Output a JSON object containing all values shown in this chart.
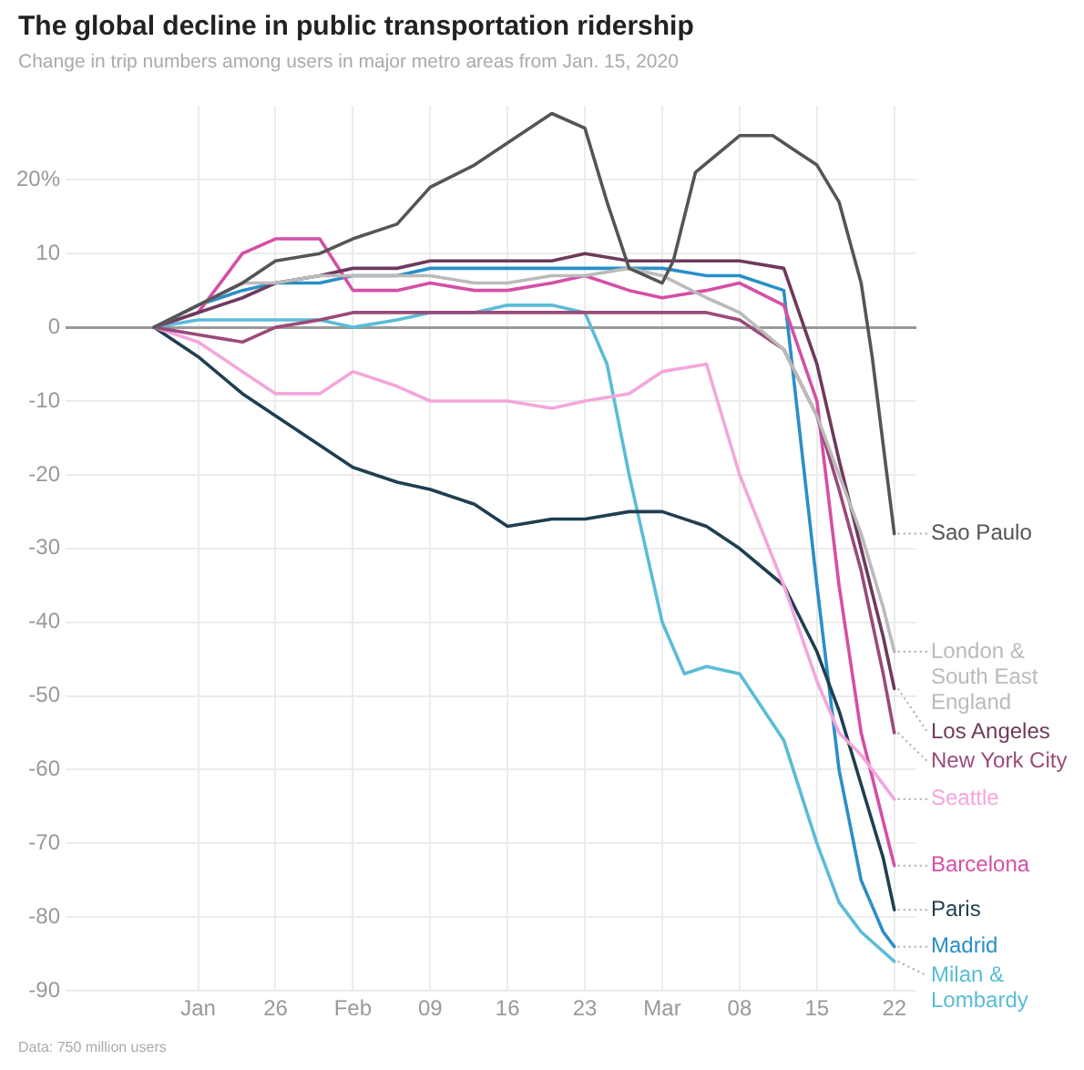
{
  "chart_data": {
    "type": "line",
    "title": "The global decline in public transportation ridership",
    "subtitle": "Change in trip numbers among users in major metro areas from Jan. 15, 2020",
    "annotations": [
      "Data: 750 million users"
    ],
    "x": [
      "2020-01-15",
      "2020-01-19",
      "2020-01-23",
      "2020-01-26",
      "2020-01-30",
      "2020-02-02",
      "2020-02-06",
      "2020-02-09",
      "2020-02-13",
      "2020-02-16",
      "2020-02-20",
      "2020-02-23",
      "2020-02-27",
      "2020-03-01",
      "2020-03-05",
      "2020-03-08",
      "2020-03-12",
      "2020-03-15",
      "2020-03-17",
      "2020-03-19",
      "2020-03-21",
      "2020-03-22"
    ],
    "series": [
      {
        "name": "Sao Paulo",
        "color": "#555555",
        "x": [
          "2020-01-15",
          "2020-01-19",
          "2020-01-23",
          "2020-01-26",
          "2020-01-30",
          "2020-02-02",
          "2020-02-06",
          "2020-02-09",
          "2020-02-13",
          "2020-02-16",
          "2020-02-20",
          "2020-02-23",
          "2020-02-25",
          "2020-02-27",
          "2020-03-01",
          "2020-03-02",
          "2020-03-04",
          "2020-03-08",
          "2020-03-11",
          "2020-03-13",
          "2020-03-15",
          "2020-03-17",
          "2020-03-19",
          "2020-03-20",
          "2020-03-21",
          "2020-03-22"
        ],
        "values": [
          0,
          3,
          6,
          9,
          10,
          12,
          14,
          19,
          22,
          25,
          29,
          27,
          17,
          8,
          6,
          9,
          21,
          26,
          26,
          24,
          22,
          17,
          6,
          -4,
          -16,
          -28
        ]
      },
      {
        "name": "London & South East England",
        "color": "#bbbbbb",
        "values": [
          0,
          3,
          6,
          6,
          7,
          7,
          7,
          7,
          6,
          6,
          7,
          7,
          8,
          7,
          4,
          2,
          -3,
          -12,
          -20,
          -28,
          -38,
          -44
        ]
      },
      {
        "name": "Los Angeles",
        "color": "#6e3a5c",
        "values": [
          0,
          2,
          4,
          6,
          7,
          8,
          8,
          9,
          9,
          9,
          9,
          10,
          9,
          9,
          9,
          9,
          8,
          -5,
          -18,
          -30,
          -42,
          -49
        ]
      },
      {
        "name": "New York City",
        "color": "#9b4a7a",
        "values": [
          0,
          -1,
          -2,
          0,
          1,
          2,
          2,
          2,
          2,
          2,
          2,
          2,
          2,
          2,
          2,
          1,
          -3,
          -12,
          -22,
          -33,
          -47,
          -55
        ]
      },
      {
        "name": "Seattle",
        "color": "#f4a6dc",
        "values": [
          0,
          -2,
          -6,
          -9,
          -9,
          -6,
          -8,
          -10,
          -10,
          -10,
          -11,
          -10,
          -9,
          -6,
          -5,
          -20,
          -35,
          -48,
          -55,
          -58,
          -62,
          -64
        ]
      },
      {
        "name": "Barcelona",
        "color": "#d44fa6",
        "values": [
          0,
          2,
          10,
          12,
          12,
          5,
          5,
          6,
          5,
          5,
          6,
          7,
          5,
          4,
          5,
          6,
          3,
          -10,
          -35,
          -55,
          -67,
          -73
        ]
      },
      {
        "name": "Paris",
        "color": "#1f3f52",
        "values": [
          0,
          -4,
          -9,
          -12,
          -16,
          -19,
          -21,
          -22,
          -24,
          -27,
          -26,
          -26,
          -25,
          -25,
          -27,
          -30,
          -35,
          -44,
          -52,
          -62,
          -72,
          -79
        ]
      },
      {
        "name": "Madrid",
        "color": "#2a8fc7",
        "values": [
          0,
          3,
          5,
          6,
          6,
          7,
          7,
          8,
          8,
          8,
          8,
          8,
          8,
          8,
          7,
          7,
          5,
          -35,
          -60,
          -75,
          -82,
          -84
        ]
      },
      {
        "name": "Milan & Lombardy",
        "color": "#5bbcd6",
        "x": [
          "2020-01-15",
          "2020-01-19",
          "2020-01-23",
          "2020-01-26",
          "2020-01-30",
          "2020-02-02",
          "2020-02-06",
          "2020-02-09",
          "2020-02-13",
          "2020-02-16",
          "2020-02-20",
          "2020-02-23",
          "2020-02-25",
          "2020-02-27",
          "2020-03-01",
          "2020-03-03",
          "2020-03-05",
          "2020-03-08",
          "2020-03-12",
          "2020-03-15",
          "2020-03-17",
          "2020-03-19",
          "2020-03-22"
        ],
        "values": [
          0,
          1,
          1,
          1,
          1,
          0,
          1,
          2,
          2,
          3,
          3,
          2,
          -5,
          -20,
          -40,
          -47,
          -46,
          -47,
          -56,
          -70,
          -78,
          -82,
          -86
        ]
      }
    ],
    "xlim": [
      "2020-01-07",
      "2020-03-24"
    ],
    "xticks": [
      {
        "value": "2020-01-19",
        "label": "Jan"
      },
      {
        "value": "2020-01-26",
        "label": "26"
      },
      {
        "value": "2020-02-02",
        "label": "Feb"
      },
      {
        "value": "2020-02-09",
        "label": "09"
      },
      {
        "value": "2020-02-16",
        "label": "16"
      },
      {
        "value": "2020-02-23",
        "label": "23"
      },
      {
        "value": "2020-03-01",
        "label": "Mar"
      },
      {
        "value": "2020-03-08",
        "label": "08"
      },
      {
        "value": "2020-03-15",
        "label": "15"
      },
      {
        "value": "2020-03-22",
        "label": "22"
      }
    ],
    "ylim": [
      -90,
      30
    ],
    "yticks": [
      {
        "value": 20,
        "label": "20%"
      },
      10,
      0,
      -10,
      -20,
      -30,
      -40,
      -50,
      -60,
      -70,
      -80,
      -90
    ],
    "grid": true,
    "legend": false
  }
}
